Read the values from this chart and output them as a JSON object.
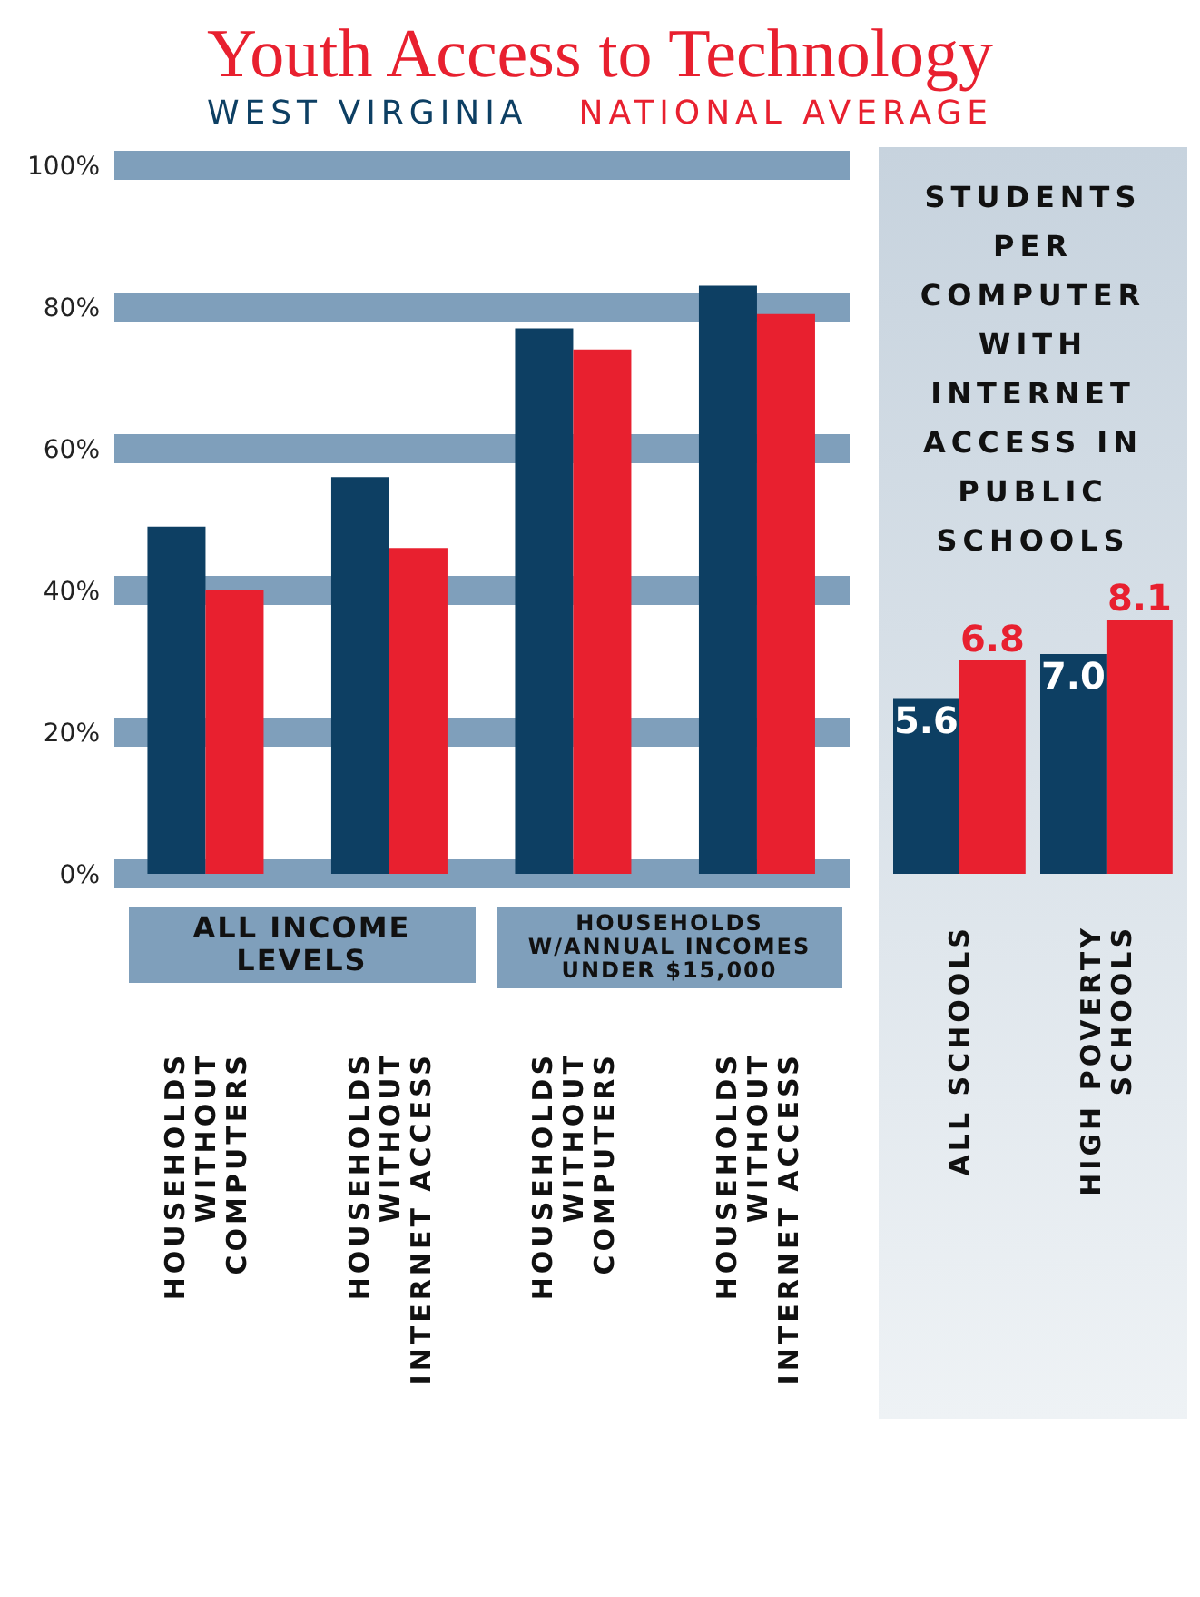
{
  "chart_data": [
    {
      "type": "bar",
      "title": "Youth Access to Technology",
      "legend": "top",
      "grid": "y",
      "categories": [
        "HOUSEHOLDS WITHOUT COMPUTERS",
        "HOUSEHOLDS WITHOUT INTERNET ACCESS",
        "HOUSEHOLDS WITHOUT COMPUTERS",
        "HOUSEHOLDS WITHOUT INTERNET ACCESS"
      ],
      "series": [
        {
          "name": "WEST VIRGINIA",
          "color": "#0d3f63",
          "values": [
            49,
            56,
            77,
            83
          ]
        },
        {
          "name": "NATIONAL AVERAGE",
          "color": "#e8202f",
          "values": [
            40,
            46,
            74,
            79
          ]
        }
      ],
      "ylim": [
        0,
        100
      ],
      "yticks": [
        {
          "value": 0,
          "label": "0%"
        },
        {
          "value": 20,
          "label": "20%"
        },
        {
          "value": 40,
          "label": "40%"
        },
        {
          "value": 60,
          "label": "60%"
        },
        {
          "value": 80,
          "label": "80%"
        },
        {
          "value": 100,
          "label": "100%"
        }
      ],
      "annotations": [
        "ALL INCOME LEVELS",
        "HOUSEHOLDS W/ANNUAL INCOMES UNDER $15,000"
      ]
    },
    {
      "type": "bar",
      "title": "STUDENTS PER COMPUTER WITH INTERNET ACCESS IN PUBLIC SCHOOLS",
      "categories": [
        "ALL SCHOOLS",
        "HIGH POVERTY SCHOOLS"
      ],
      "series": [
        {
          "color": "#0d3f63",
          "values": [
            5.6,
            7.0
          ],
          "value_labels": [
            "5.6",
            "7.0"
          ]
        },
        {
          "color": "#e8202f",
          "values": [
            6.8,
            8.1
          ],
          "value_labels": [
            "6.8",
            "8.1"
          ]
        }
      ]
    }
  ]
}
